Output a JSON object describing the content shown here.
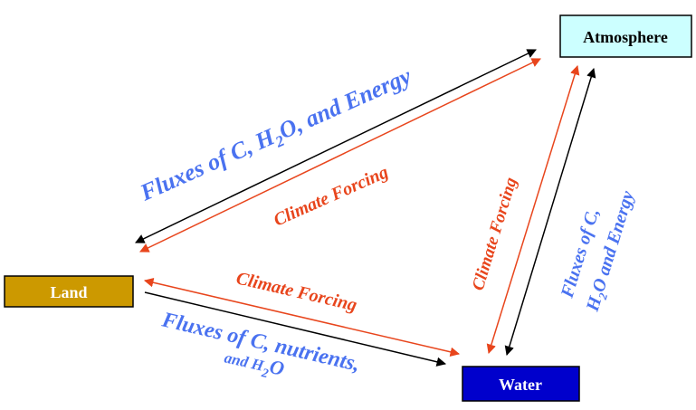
{
  "nodes": {
    "atmosphere": {
      "label": "Atmosphere",
      "fill": "#ccffff",
      "text_color": "#000000"
    },
    "land": {
      "label": "Land",
      "fill": "#cc9900",
      "text_color": "#ffffff"
    },
    "water": {
      "label": "Water",
      "fill": "#0000cc",
      "text_color": "#ffffff"
    }
  },
  "edges": {
    "land_atmosphere": {
      "flux": {
        "part1": "Fluxes of C, H",
        "sub": "2",
        "part2": "O, and Energy"
      },
      "forcing": "Climate Forcing"
    },
    "atmosphere_water": {
      "forcing": "Climate Forcing",
      "flux_line1": "Fluxes of C,",
      "flux_line2": {
        "part1": "H",
        "sub": "2",
        "part2": "O and Energy"
      }
    },
    "land_water": {
      "forcing": "Climate Forcing",
      "flux_line1": "Fluxes of C, nutrients,",
      "flux_line2": {
        "part1": "and H",
        "sub": "2",
        "part2": "O"
      }
    }
  },
  "colors": {
    "flux_text": "#4a72f0",
    "forcing": "#e8451c",
    "flux_arrow": "#000000"
  }
}
